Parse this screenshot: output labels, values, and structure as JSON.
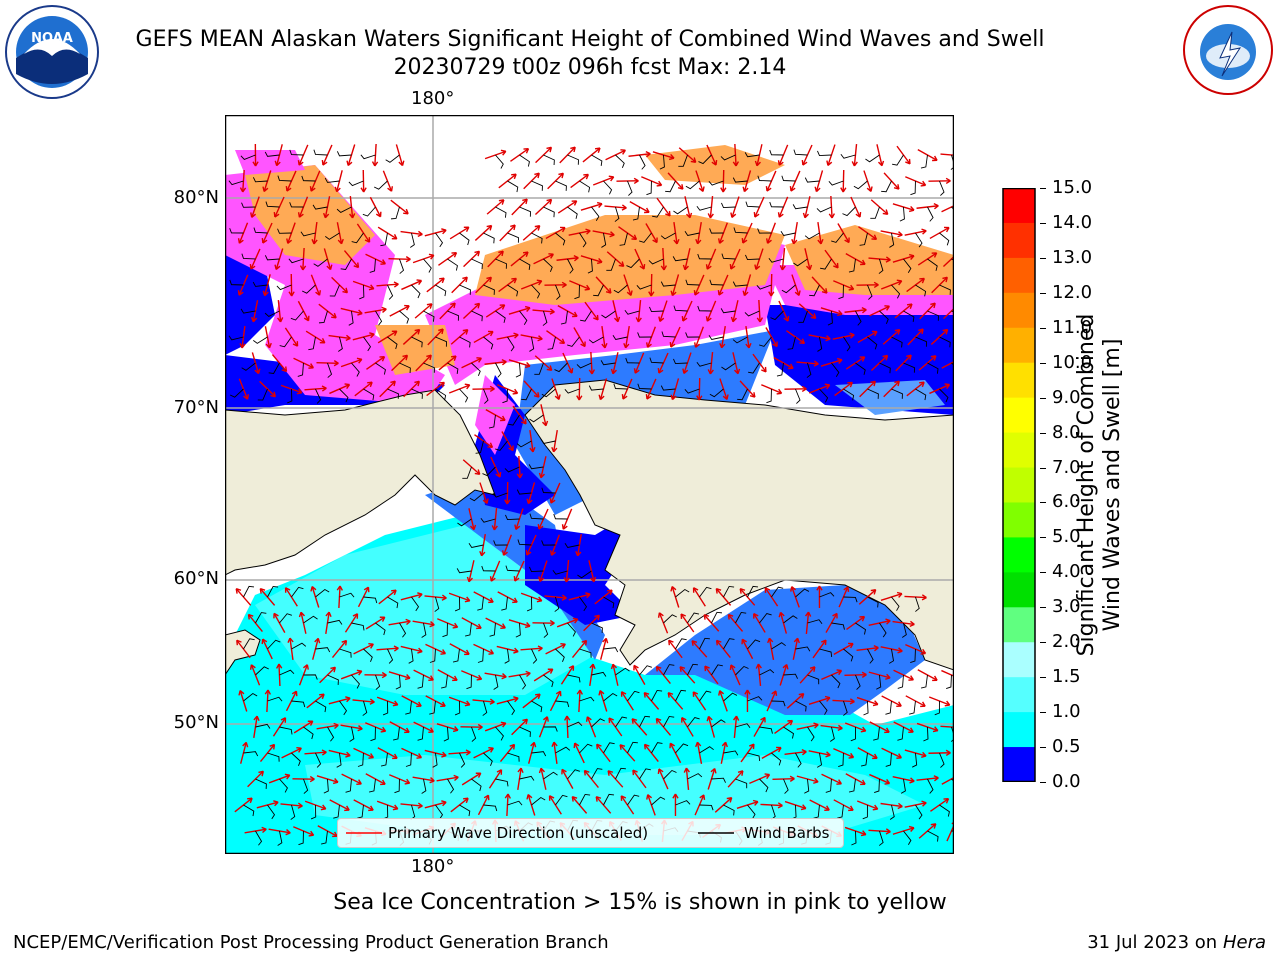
{
  "header": {
    "title": "GEFS MEAN Alaskan Waters Significant Height of Combined Wind Waves and Swell",
    "subtitle": "20230729 t00z 096h fcst   Max: 2.14"
  },
  "logos": {
    "left": "noara-logo",
    "right": "nws-logo"
  },
  "map": {
    "lon_label_top": "180°",
    "lon_label_bottom": "180°",
    "lat_labels": [
      "80°N",
      "70°N",
      "60°N",
      "50°N"
    ],
    "colors": {
      "land": "#efedd9",
      "dark_blue": "#0000ff",
      "mid_blue": "#0080ff",
      "cyan": "#00ffff",
      "light_cyan": "#66ffff",
      "ice_pink": "#ff66ff",
      "ice_orange": "#ffaa55"
    }
  },
  "legend": {
    "wave_label": "Primary Wave Direction (unscaled)",
    "wind_label": "Wind Barbs"
  },
  "colorbar": {
    "label_line1": "Significant Height of Combined",
    "label_line2": "Wind Waves and Swell [m]",
    "ticks": [
      "15.0",
      "14.0",
      "13.0",
      "12.0",
      "11.0",
      "10.0",
      "9.0",
      "8.0",
      "7.0",
      "6.0",
      "5.0",
      "4.0",
      "3.0",
      "2.0",
      "1.5",
      "1.0",
      "0.5",
      "0.0"
    ],
    "colors": [
      "#ff0000",
      "#ff3000",
      "#ff6000",
      "#ff8a00",
      "#ffb000",
      "#ffe000",
      "#ffff00",
      "#e0ff00",
      "#c0ff00",
      "#80ff00",
      "#00ff00",
      "#00e000",
      "#60ff80",
      "#aaffff",
      "#55ffff",
      "#00ffff",
      "#0080ff",
      "#0000ff"
    ]
  },
  "footer": {
    "sea_ice_note": "Sea Ice Concentration > 15% is shown in pink to yellow",
    "left": "NCEP/EMC/Verification Post Processing Product Generation Branch",
    "right_date": "31 Jul 2023 on ",
    "right_machine": "Hera"
  }
}
